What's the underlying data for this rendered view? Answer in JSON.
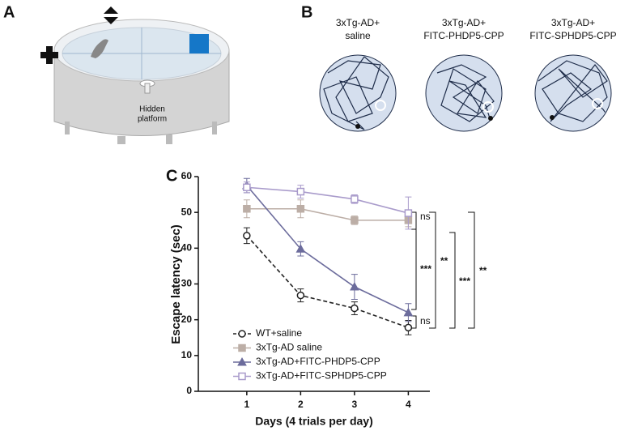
{
  "panel_a": {
    "label": "A",
    "platform_label": [
      "Hidden",
      "platform"
    ]
  },
  "panel_b": {
    "label": "B",
    "groups": [
      {
        "lines": [
          "3xTg-AD+",
          "saline"
        ]
      },
      {
        "lines": [
          "3xTg-AD+",
          "FITC-PHDP5-CPP"
        ]
      },
      {
        "lines": [
          "3xTg-AD+",
          "FITC-SPHDP5-CPP"
        ]
      }
    ]
  },
  "chart_data": {
    "type": "line",
    "label": "C",
    "x_label": "Days (4 trials per day)",
    "y_label": "Escape latency (sec)",
    "x": [
      1,
      2,
      3,
      4
    ],
    "xlim": [
      0.1,
      4.4
    ],
    "xticks": [
      1,
      2,
      3,
      4
    ],
    "ylim": [
      0,
      60
    ],
    "yticks": [
      0,
      10,
      20,
      30,
      40,
      50,
      60
    ],
    "legend": "lower left",
    "series": [
      {
        "name": "WT+saline",
        "color": "#222222",
        "marker": "circle-open",
        "dashed": true,
        "values": [
          43.5,
          26.8,
          23.2,
          17.8
        ],
        "errors": [
          2.2,
          1.8,
          1.8,
          2.0
        ]
      },
      {
        "name": "3xTg-AD saline",
        "color": "#bcaea6",
        "marker": "square",
        "dashed": false,
        "values": [
          51,
          51,
          47.8,
          47.8
        ],
        "errors": [
          2.5,
          2.5,
          1.2,
          1.8
        ]
      },
      {
        "name": "3xTg-AD+FITC-PHDP5-CPP",
        "color": "#6c6c9c",
        "marker": "triangle",
        "dashed": false,
        "values": [
          57.5,
          39.8,
          29.2,
          22
        ],
        "errors": [
          2,
          2,
          3.5,
          2.5
        ]
      },
      {
        "name": "3xTg-AD+FITC-SPHDP5-CPP",
        "color": "#a99bcb",
        "marker": "square-open",
        "dashed": false,
        "values": [
          57,
          55.8,
          53.7,
          49.8
        ],
        "errors": [
          1.5,
          1.8,
          1.2,
          4.5
        ]
      }
    ],
    "significance": [
      "ns",
      "***",
      "ns",
      "**",
      "***",
      "**"
    ]
  }
}
